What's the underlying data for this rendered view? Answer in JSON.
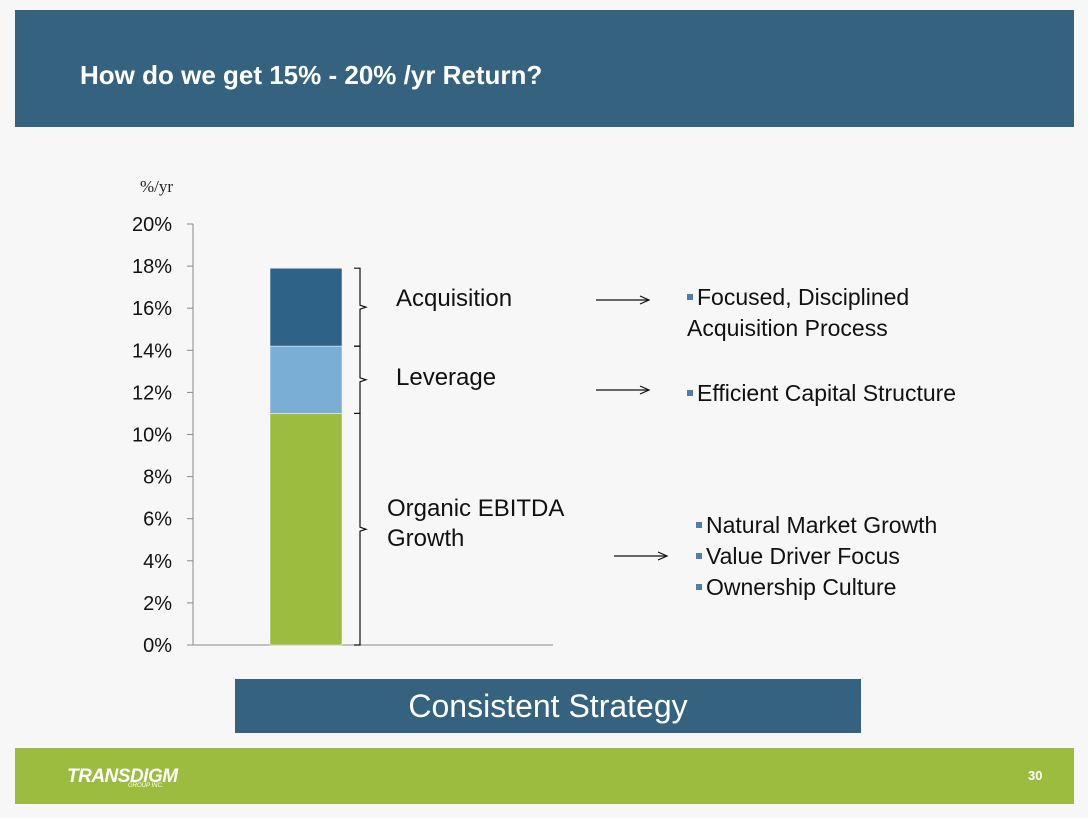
{
  "header": {
    "title": "How do we get 15% - 20% /yr Return?",
    "bg_color": "#35637f"
  },
  "chart_data": {
    "type": "bar",
    "stacked": true,
    "ylabel": "%/yr",
    "ylim": [
      0,
      20
    ],
    "ytick_step": 2,
    "yticks": [
      "0%",
      "2%",
      "4%",
      "6%",
      "8%",
      "10%",
      "12%",
      "14%",
      "16%",
      "18%",
      "20%"
    ],
    "grid": false,
    "series": [
      {
        "name": "Organic EBITDA Growth",
        "value": 11.0,
        "color": "#9cbc3f"
      },
      {
        "name": "Leverage",
        "value": 3.2,
        "color": "#7aaed5"
      },
      {
        "name": "Acquisition",
        "value": 3.7,
        "color": "#2f6287"
      }
    ]
  },
  "segments": [
    {
      "label": "Acquisition",
      "bullets": [
        "Focused, Disciplined",
        "Acquisition Process"
      ]
    },
    {
      "label": "Leverage",
      "bullets": [
        "Efficient Capital Structure"
      ]
    },
    {
      "label_lines": [
        "Organic EBITDA",
        "Growth"
      ],
      "bullets": [
        "Natural Market Growth",
        "Value Driver Focus",
        "Ownership Culture"
      ]
    }
  ],
  "strategy": {
    "label": "Consistent Strategy"
  },
  "footer": {
    "logo": "TRANSDIGM",
    "logo_sub": "GROUP INC.",
    "page_number": "30",
    "bg_color": "#9cbc3f"
  }
}
